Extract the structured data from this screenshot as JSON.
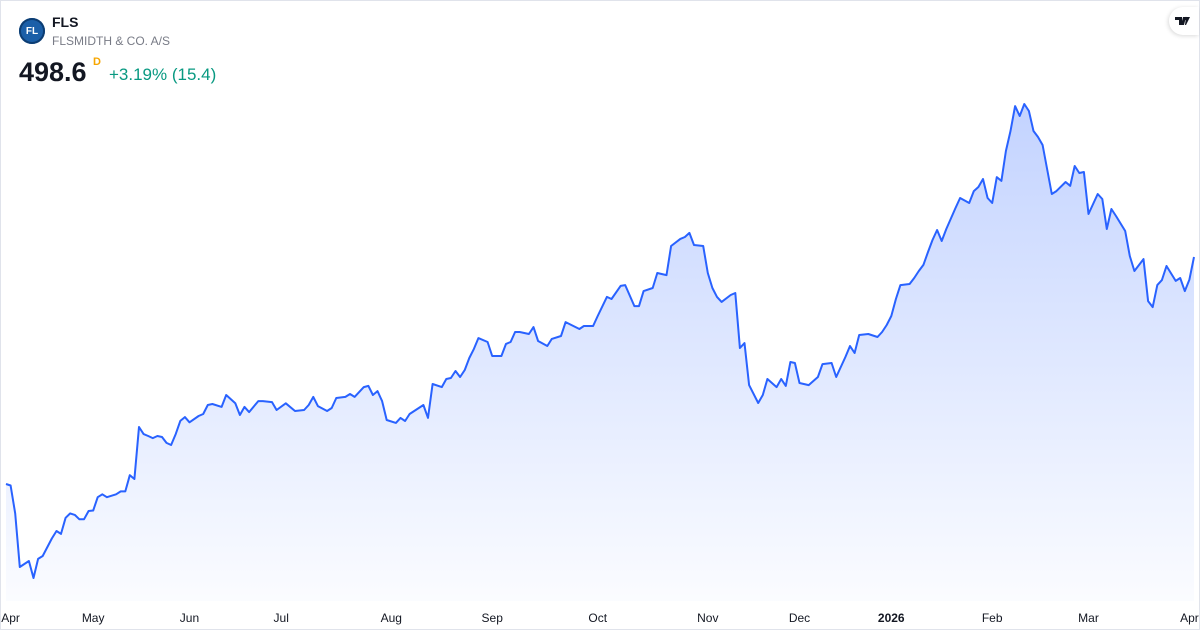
{
  "header": {
    "logo_text": "FL",
    "symbol": "FLS",
    "name": "FLSMIDTH & CO. A/S",
    "price": 498.6,
    "interval": "D",
    "change": "+3.19% (15.4)"
  },
  "chart_data": {
    "type": "area",
    "color": "#2962ff",
    "x": [
      0,
      1,
      2,
      3,
      5,
      6,
      7,
      8,
      10,
      11,
      12,
      13,
      14,
      15,
      16,
      17,
      18,
      19,
      20,
      21,
      22,
      24,
      25,
      26,
      27,
      28,
      29,
      30,
      31,
      32,
      33,
      34,
      35,
      36,
      37,
      38,
      39,
      40,
      42,
      43,
      44,
      45,
      47,
      48,
      50,
      51,
      52,
      53,
      55,
      56,
      58,
      59,
      61,
      63,
      65,
      66,
      67,
      68,
      70,
      71,
      72,
      74,
      75,
      76,
      78,
      79,
      80,
      81,
      82,
      83,
      85,
      86,
      87,
      88,
      89,
      91,
      92,
      93,
      95,
      96,
      97,
      98,
      99,
      100,
      101,
      102,
      103,
      105,
      106,
      108,
      109,
      110,
      111,
      112,
      114,
      115,
      116,
      118,
      119,
      121,
      122,
      125,
      126,
      128,
      129,
      131,
      132,
      134,
      135,
      137,
      138,
      139,
      141,
      142,
      144,
      145,
      147,
      148,
      149,
      150,
      152,
      153,
      154,
      155,
      156,
      158,
      159,
      160,
      161,
      162,
      164,
      165,
      166,
      168,
      169,
      170,
      171,
      172,
      173,
      175,
      177,
      178,
      180,
      181,
      183,
      184,
      185,
      186,
      188,
      190,
      191,
      192,
      193,
      194,
      195,
      197,
      198,
      199,
      200,
      201,
      202,
      203,
      204,
      205,
      207,
      208,
      210,
      211,
      212,
      213,
      214,
      215,
      216,
      217,
      218,
      219,
      220,
      221,
      222,
      223,
      224,
      225,
      226,
      228,
      229,
      231,
      232,
      233,
      234,
      235,
      236,
      238,
      239,
      240,
      241,
      242,
      244,
      245,
      246,
      248,
      249,
      250,
      251,
      252,
      253,
      255,
      256,
      257,
      258,
      259
    ],
    "values": [
      344,
      343,
      324,
      287.5,
      291.6,
      280,
      293,
      295,
      307,
      312,
      310,
      321,
      324,
      323,
      320,
      320,
      325.6,
      326,
      335,
      337,
      335,
      337,
      339,
      339,
      350,
      347.4,
      382.8,
      378,
      376.7,
      375.3,
      376.7,
      376,
      372,
      370.6,
      378,
      387,
      389.6,
      386,
      390.3,
      391.7,
      397.8,
      398.5,
      396.5,
      404.6,
      399,
      391,
      396.5,
      393,
      400.5,
      400.5,
      399.8,
      394.4,
      399,
      393.7,
      394.4,
      397.8,
      403.3,
      397.1,
      393.7,
      395.8,
      402.6,
      403.3,
      405.3,
      403.3,
      410,
      410.8,
      404.6,
      407.3,
      400.5,
      387.6,
      385.6,
      389,
      386.9,
      391.7,
      393.7,
      397.8,
      389,
      412.1,
      410,
      415.5,
      416.2,
      421,
      416.9,
      421.6,
      429.8,
      436,
      443.4,
      440.7,
      431.2,
      431.2,
      439.4,
      440.7,
      447.5,
      447.5,
      446.2,
      450.9,
      441.4,
      438,
      442.8,
      444.8,
      454.3,
      449.6,
      451.6,
      451.6,
      458.4,
      471.4,
      470,
      478.9,
      479.5,
      465.2,
      465.2,
      475.4,
      477.5,
      487.7,
      486.3,
      506.1,
      510.9,
      512.2,
      515,
      506.8,
      506.1,
      487.7,
      477.5,
      471.4,
      468,
      472.7,
      474.1,
      436.6,
      440,
      411.4,
      399.2,
      404.6,
      415.5,
      410,
      415.5,
      410.8,
      427.1,
      426.4,
      412.8,
      411.4,
      416.9,
      425.7,
      426.4,
      416.9,
      430.5,
      438,
      433.2,
      445.5,
      446.2,
      444.1,
      447.5,
      452.3,
      458.4,
      470,
      479.5,
      480.2,
      484.3,
      489.1,
      493.2,
      502,
      510.2,
      517,
      509.5,
      517.7,
      532,
      538.8,
      535.4,
      543.5,
      546.3,
      551.7,
      538.8,
      535.4,
      553,
      550.4,
      570.8,
      584.4,
      601.4,
      594.6,
      602.8,
      598,
      584.4,
      580.3,
      574.9,
      541.5,
      543.5,
      549.7,
      547,
      560.6,
      555.8,
      556.5,
      527.9,
      541.5,
      538.1,
      517.7,
      531.3,
      526.5,
      516.3,
      499.3,
      489.1,
      497.2,
      468.6,
      464.5,
      479.5,
      482.9,
      492.5,
      482.3,
      484.3,
      475.4,
      483.2,
      498.6
    ],
    "xlim": [
      0,
      259
    ],
    "xticks": [
      {
        "value": 1,
        "label": "Apr"
      },
      {
        "value": 19,
        "label": "May"
      },
      {
        "value": 40,
        "label": "Jun"
      },
      {
        "value": 60,
        "label": "Jul"
      },
      {
        "value": 84,
        "label": "Aug"
      },
      {
        "value": 106,
        "label": "Sep"
      },
      {
        "value": 129,
        "label": "Oct"
      },
      {
        "value": 153,
        "label": "Nov"
      },
      {
        "value": 173,
        "label": "Dec"
      },
      {
        "value": 193,
        "label": "2026"
      },
      {
        "value": 215,
        "label": "Feb"
      },
      {
        "value": 236,
        "label": "Mar"
      },
      {
        "value": 258,
        "label": "Apr"
      }
    ],
    "grid": false
  }
}
